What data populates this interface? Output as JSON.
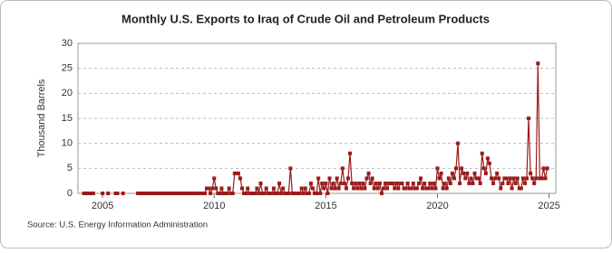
{
  "chart_data": {
    "type": "line",
    "title": "Monthly U.S. Exports to Iraq of Crude Oil and Petroleum Products",
    "y_label": "Thousand Barrels",
    "source": "Source: U.S. Energy Information Administration",
    "x": [
      2004,
      2004.083,
      2004.167,
      2004.25,
      2004.333,
      2004.417,
      2004.5,
      2004.583,
      2004.667,
      2004.75,
      2004.833,
      2004.917,
      2005,
      2005.083,
      2005.167,
      2005.25,
      2005.333,
      2005.417,
      2005.5,
      2005.583,
      2005.667,
      2005.75,
      2005.833,
      2005.917,
      2006,
      2006.083,
      2006.167,
      2006.25,
      2006.333,
      2006.417,
      2006.5,
      2006.583,
      2006.667,
      2006.75,
      2006.833,
      2006.917,
      2007,
      2007.083,
      2007.167,
      2007.25,
      2007.333,
      2007.417,
      2007.5,
      2007.583,
      2007.667,
      2007.75,
      2007.833,
      2007.917,
      2008,
      2008.083,
      2008.167,
      2008.25,
      2008.333,
      2008.417,
      2008.5,
      2008.583,
      2008.667,
      2008.75,
      2008.833,
      2008.917,
      2009,
      2009.083,
      2009.167,
      2009.25,
      2009.333,
      2009.417,
      2009.5,
      2009.583,
      2009.667,
      2009.75,
      2009.833,
      2009.917,
      2010,
      2010.083,
      2010.167,
      2010.25,
      2010.333,
      2010.417,
      2010.5,
      2010.583,
      2010.667,
      2010.75,
      2010.833,
      2010.917,
      2011,
      2011.083,
      2011.167,
      2011.25,
      2011.333,
      2011.417,
      2011.5,
      2011.583,
      2011.667,
      2011.75,
      2011.833,
      2011.917,
      2012,
      2012.083,
      2012.167,
      2012.25,
      2012.333,
      2012.417,
      2012.5,
      2012.583,
      2012.667,
      2012.75,
      2012.833,
      2012.917,
      2013,
      2013.083,
      2013.167,
      2013.25,
      2013.333,
      2013.417,
      2013.5,
      2013.583,
      2013.667,
      2013.75,
      2013.833,
      2013.917,
      2014,
      2014.083,
      2014.167,
      2014.25,
      2014.333,
      2014.417,
      2014.5,
      2014.583,
      2014.667,
      2014.75,
      2014.833,
      2014.917,
      2015,
      2015.083,
      2015.167,
      2015.25,
      2015.333,
      2015.417,
      2015.5,
      2015.583,
      2015.667,
      2015.75,
      2015.833,
      2015.917,
      2016,
      2016.083,
      2016.167,
      2016.25,
      2016.333,
      2016.417,
      2016.5,
      2016.583,
      2016.667,
      2016.75,
      2016.833,
      2016.917,
      2017,
      2017.083,
      2017.167,
      2017.25,
      2017.333,
      2017.417,
      2017.5,
      2017.583,
      2017.667,
      2017.75,
      2017.833,
      2017.917,
      2018,
      2018.083,
      2018.167,
      2018.25,
      2018.333,
      2018.417,
      2018.5,
      2018.583,
      2018.667,
      2018.75,
      2018.833,
      2018.917,
      2019,
      2019.083,
      2019.167,
      2019.25,
      2019.333,
      2019.417,
      2019.5,
      2019.583,
      2019.667,
      2019.75,
      2019.833,
      2019.917,
      2020,
      2020.083,
      2020.167,
      2020.25,
      2020.333,
      2020.417,
      2020.5,
      2020.583,
      2020.667,
      2020.75,
      2020.833,
      2020.917,
      2021,
      2021.083,
      2021.167,
      2021.25,
      2021.333,
      2021.417,
      2021.5,
      2021.583,
      2021.667,
      2021.75,
      2021.833,
      2021.917,
      2022,
      2022.083,
      2022.167,
      2022.25,
      2022.333,
      2022.417,
      2022.5,
      2022.583,
      2022.667,
      2022.75,
      2022.833,
      2022.917,
      2023,
      2023.083,
      2023.167,
      2023.25,
      2023.333,
      2023.417,
      2023.5,
      2023.583,
      2023.667,
      2023.75,
      2023.833,
      2023.917,
      2024,
      2024.083,
      2024.167,
      2024.25,
      2024.333,
      2024.417,
      2024.5,
      2024.583,
      2024.667,
      2024.75,
      2024.833,
      2024.917
    ],
    "series": [
      {
        "color": "#9b1b1b",
        "values": [
          null,
          null,
          0,
          0,
          0,
          0,
          0,
          0,
          null,
          null,
          null,
          null,
          0,
          null,
          null,
          0,
          null,
          null,
          null,
          0,
          0,
          null,
          null,
          0,
          null,
          null,
          null,
          null,
          null,
          null,
          null,
          0,
          0,
          0,
          0,
          0,
          0,
          0,
          0,
          0,
          0,
          0,
          0,
          0,
          0,
          0,
          0,
          0,
          0,
          0,
          0,
          0,
          0,
          0,
          0,
          0,
          0,
          0,
          0,
          0,
          0,
          0,
          0,
          0,
          0,
          0,
          0,
          0,
          1,
          1,
          0,
          1,
          3,
          1,
          0,
          0,
          1,
          0,
          0,
          0,
          1,
          0,
          0,
          4,
          4,
          4,
          3,
          1,
          0,
          0,
          1,
          0,
          0,
          0,
          0,
          1,
          0,
          2,
          0,
          0,
          1,
          0,
          0,
          0,
          1,
          0,
          0,
          2,
          0,
          1,
          0,
          0,
          0,
          5,
          0,
          0,
          0,
          0,
          0,
          1,
          0,
          1,
          0,
          0,
          2,
          1,
          0,
          0,
          3,
          0,
          2,
          1,
          2,
          0,
          3,
          1,
          2,
          1,
          3,
          1,
          2,
          5,
          2,
          1,
          3,
          8,
          2,
          1,
          2,
          1,
          2,
          1,
          2,
          1,
          3,
          4,
          2,
          3,
          1,
          2,
          1,
          2,
          0,
          1,
          2,
          1,
          2,
          2,
          2,
          1,
          2,
          1,
          2,
          2,
          1,
          1,
          2,
          1,
          1,
          2,
          1,
          1,
          2,
          3,
          1,
          2,
          1,
          1,
          2,
          1,
          2,
          1,
          5,
          3,
          4,
          1,
          2,
          1,
          3,
          2,
          4,
          3,
          5,
          10,
          2,
          5,
          4,
          3,
          4,
          2,
          3,
          2,
          4,
          3,
          3,
          2,
          8,
          5,
          4,
          7,
          6,
          3,
          2,
          3,
          4,
          3,
          1,
          2,
          3,
          3,
          2,
          3,
          1,
          3,
          2,
          3,
          1,
          1,
          3,
          2,
          3,
          15,
          4,
          3,
          2,
          3,
          26,
          3,
          3,
          5,
          3,
          5
        ]
      }
    ],
    "xlim": [
      2003.9,
      2025.3
    ],
    "xticks": [
      2005,
      2010,
      2015,
      2020,
      2025
    ],
    "ylim": [
      0,
      30
    ],
    "yticks": [
      0,
      5,
      10,
      15,
      20,
      25,
      30
    ],
    "grid": true
  }
}
